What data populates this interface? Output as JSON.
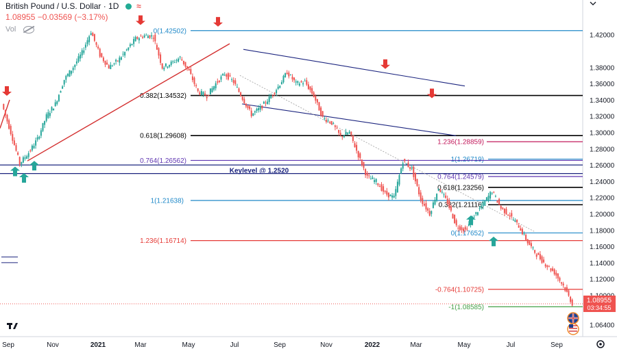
{
  "header": {
    "symbol": "British Pound / U.S. Dollar · 1D",
    "quote": "1.08955 −0.03569 (−3.17%)",
    "vol": "Vol"
  },
  "price_badge": {
    "price": "1.08955",
    "countdown": "03:34:55",
    "color": "#ef5350"
  },
  "icons": [
    "dropdown-chevron-icon",
    "settings-gear-icon",
    "uk-flag-icon",
    "us-flag-icon",
    "tradingview-logo"
  ],
  "colors": {
    "fib_blue": "#1e88c8",
    "fib_black": "#000000",
    "fib_red": "#e53935",
    "fib_magenta": "#c2185b",
    "fib_purple": "#5e35b1",
    "fib_green": "#43a047",
    "channel": "#1a237e",
    "trendline": "#d32f2f",
    "arrow_down": "#e53935",
    "arrow_up": "#26a69a"
  },
  "chart_data": {
    "type": "candlestick",
    "title": "British Pound / U.S. Dollar",
    "x_axis_labels": [
      "Sep",
      "Nov",
      "2021",
      "Mar",
      "May",
      "Jul",
      "Sep",
      "Nov",
      "2022",
      "Mar",
      "May",
      "Jul",
      "Sep"
    ],
    "y_axis_ticks": [
      "1.42000",
      "1.38000",
      "1.36000",
      "1.34000",
      "1.32000",
      "1.30000",
      "1.28000",
      "1.26000",
      "1.24000",
      "1.22000",
      "1.20000",
      "1.18000",
      "1.16000",
      "1.14000",
      "1.12000",
      "1.10000",
      "1.06400"
    ],
    "ylim": [
      1.05,
      1.445
    ],
    "last_price": 1.08955,
    "keylevel_label": "Keylevel @ 1.2520",
    "levels": [
      {
        "label": "0(1.42502)",
        "value": 1.42502,
        "color": "fib_blue"
      },
      {
        "label": "0.382(1.34532)",
        "value": 1.34532,
        "color": "fib_black"
      },
      {
        "label": "0.618(1.29608)",
        "value": 1.29608,
        "color": "fib_black"
      },
      {
        "label": "1.236(1.28859)",
        "value": 1.28859,
        "color": "fib_magenta"
      },
      {
        "label": "1(1.26719)",
        "value": 1.26719,
        "color": "fib_blue"
      },
      {
        "label": "0.764(1.26562)",
        "value": 1.26562,
        "color": "fib_purple"
      },
      {
        "label": "0.764(1.24579)",
        "value": 1.24579,
        "color": "fib_purple"
      },
      {
        "label": "0.618(1.23256)",
        "value": 1.23256,
        "color": "fib_black"
      },
      {
        "label": "1(1.21638)",
        "value": 1.21638,
        "color": "fib_blue"
      },
      {
        "label": "0.382(1.21116)",
        "value": 1.21116,
        "color": "fib_black"
      },
      {
        "label": "0(1.17652)",
        "value": 1.17652,
        "color": "fib_blue"
      },
      {
        "label": "1.236(1.16714)",
        "value": 1.16714,
        "color": "fib_red"
      },
      {
        "label": "-0.764(1.10725)",
        "value": 1.10725,
        "color": "fib_red"
      },
      {
        "label": "-1(1.08585)",
        "value": 1.08585,
        "color": "fib_green"
      }
    ],
    "price_path": [
      [
        0,
        1.335
      ],
      [
        1,
        1.3
      ],
      [
        2,
        1.262
      ],
      [
        3,
        1.275
      ],
      [
        4,
        1.292
      ],
      [
        5,
        1.32
      ],
      [
        6,
        1.335
      ],
      [
        7,
        1.365
      ],
      [
        8,
        1.38
      ],
      [
        9,
        1.398
      ],
      [
        10,
        1.424
      ],
      [
        11,
        1.395
      ],
      [
        12,
        1.38
      ],
      [
        13,
        1.388
      ],
      [
        14,
        1.401
      ],
      [
        15,
        1.415
      ],
      [
        16,
        1.419
      ],
      [
        17,
        1.418
      ],
      [
        18,
        1.38
      ],
      [
        19,
        1.385
      ],
      [
        20,
        1.392
      ],
      [
        21,
        1.375
      ],
      [
        22,
        1.35
      ],
      [
        23,
        1.345
      ],
      [
        24,
        1.36
      ],
      [
        25,
        1.372
      ],
      [
        26,
        1.362
      ],
      [
        27,
        1.342
      ],
      [
        28,
        1.322
      ],
      [
        29,
        1.33
      ],
      [
        30,
        1.342
      ],
      [
        31,
        1.356
      ],
      [
        32,
        1.374
      ],
      [
        33,
        1.36
      ],
      [
        34,
        1.362
      ],
      [
        35,
        1.345
      ],
      [
        36,
        1.318
      ],
      [
        37,
        1.312
      ],
      [
        38,
        1.295
      ],
      [
        39,
        1.3
      ],
      [
        40,
        1.272
      ],
      [
        41,
        1.245
      ],
      [
        42,
        1.24
      ],
      [
        43,
        1.225
      ],
      [
        44,
        1.22
      ],
      [
        45,
        1.265
      ],
      [
        46,
        1.255
      ],
      [
        47,
        1.218
      ],
      [
        48,
        1.2
      ],
      [
        49,
        1.232
      ],
      [
        50,
        1.214
      ],
      [
        51,
        1.185
      ],
      [
        52,
        1.18
      ],
      [
        53,
        1.198
      ],
      [
        54,
        1.212
      ],
      [
        55,
        1.228
      ],
      [
        56,
        1.207
      ],
      [
        57,
        1.198
      ],
      [
        58,
        1.185
      ],
      [
        59,
        1.165
      ],
      [
        60,
        1.15
      ],
      [
        61,
        1.138
      ],
      [
        62,
        1.128
      ],
      [
        63,
        1.112
      ],
      [
        64,
        1.0896
      ]
    ]
  }
}
